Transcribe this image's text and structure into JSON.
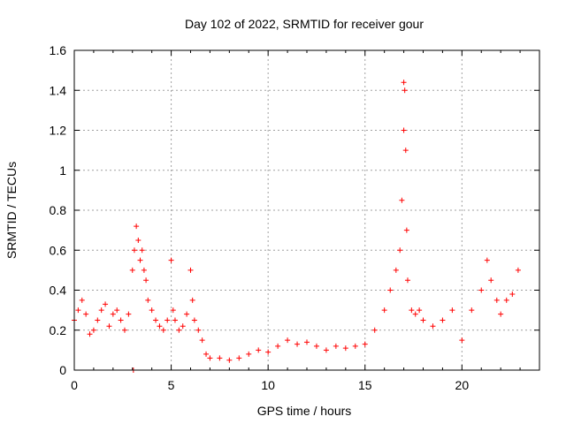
{
  "chart_data": {
    "type": "scatter",
    "title": "Day 102 of 2022, SRMTID for receiver gour",
    "xlabel": "GPS time / hours",
    "ylabel": "SRMTID / TECUs",
    "xlim": [
      0,
      24
    ],
    "ylim": [
      0,
      1.6
    ],
    "xticks": [
      0,
      5,
      10,
      15,
      20
    ],
    "xtick_labels": [
      "0",
      "5",
      "10",
      "15",
      "20"
    ],
    "yticks": [
      0,
      0.2,
      0.4,
      0.6,
      0.8,
      1,
      1.2,
      1.4,
      1.6
    ],
    "ytick_labels": [
      "0",
      "0.2",
      "0.4",
      "0.6",
      "0.8",
      "1",
      "1.2",
      "1.4",
      "1.6"
    ],
    "grid": true,
    "marker": "+",
    "marker_color": "#ff0000",
    "series": [
      {
        "name": "SRMTID",
        "x": [
          0.0,
          0.2,
          0.4,
          0.6,
          0.8,
          1.0,
          1.2,
          1.4,
          1.6,
          1.8,
          2.0,
          2.2,
          2.4,
          2.6,
          2.8,
          3.0,
          3.1,
          3.2,
          3.3,
          3.4,
          3.5,
          3.6,
          3.7,
          3.8,
          4.0,
          4.2,
          4.4,
          4.6,
          4.8,
          5.0,
          5.1,
          5.2,
          5.4,
          5.6,
          5.8,
          6.0,
          6.1,
          6.2,
          6.4,
          6.6,
          6.8,
          7.0,
          7.5,
          8.0,
          8.5,
          9.0,
          9.5,
          10.0,
          10.5,
          11.0,
          11.5,
          12.0,
          12.5,
          13.0,
          13.5,
          14.0,
          14.5,
          15.0,
          15.5,
          16.0,
          16.3,
          16.6,
          16.8,
          16.9,
          17.0,
          17.05,
          17.1,
          17.15,
          17.2,
          17.4,
          17.6,
          17.8,
          18.0,
          18.5,
          19.0,
          19.5,
          20.0,
          20.5,
          21.0,
          21.3,
          21.5,
          21.8,
          22.0,
          22.3,
          22.6,
          22.9,
          3.05,
          17.0
        ],
        "y": [
          0.25,
          0.3,
          0.35,
          0.28,
          0.18,
          0.2,
          0.25,
          0.3,
          0.33,
          0.22,
          0.28,
          0.3,
          0.25,
          0.2,
          0.28,
          0.5,
          0.6,
          0.72,
          0.65,
          0.55,
          0.6,
          0.5,
          0.45,
          0.35,
          0.3,
          0.25,
          0.22,
          0.2,
          0.25,
          0.55,
          0.3,
          0.25,
          0.2,
          0.22,
          0.28,
          0.5,
          0.35,
          0.25,
          0.2,
          0.15,
          0.08,
          0.06,
          0.06,
          0.05,
          0.06,
          0.08,
          0.1,
          0.09,
          0.12,
          0.15,
          0.13,
          0.14,
          0.12,
          0.1,
          0.12,
          0.11,
          0.12,
          0.13,
          0.2,
          0.3,
          0.4,
          0.5,
          0.6,
          0.85,
          1.2,
          1.4,
          1.1,
          0.7,
          0.45,
          0.3,
          0.28,
          0.3,
          0.25,
          0.22,
          0.25,
          0.3,
          0.15,
          0.3,
          0.4,
          0.55,
          0.45,
          0.35,
          0.28,
          0.35,
          0.38,
          0.5,
          0.0,
          1.44
        ]
      }
    ]
  }
}
